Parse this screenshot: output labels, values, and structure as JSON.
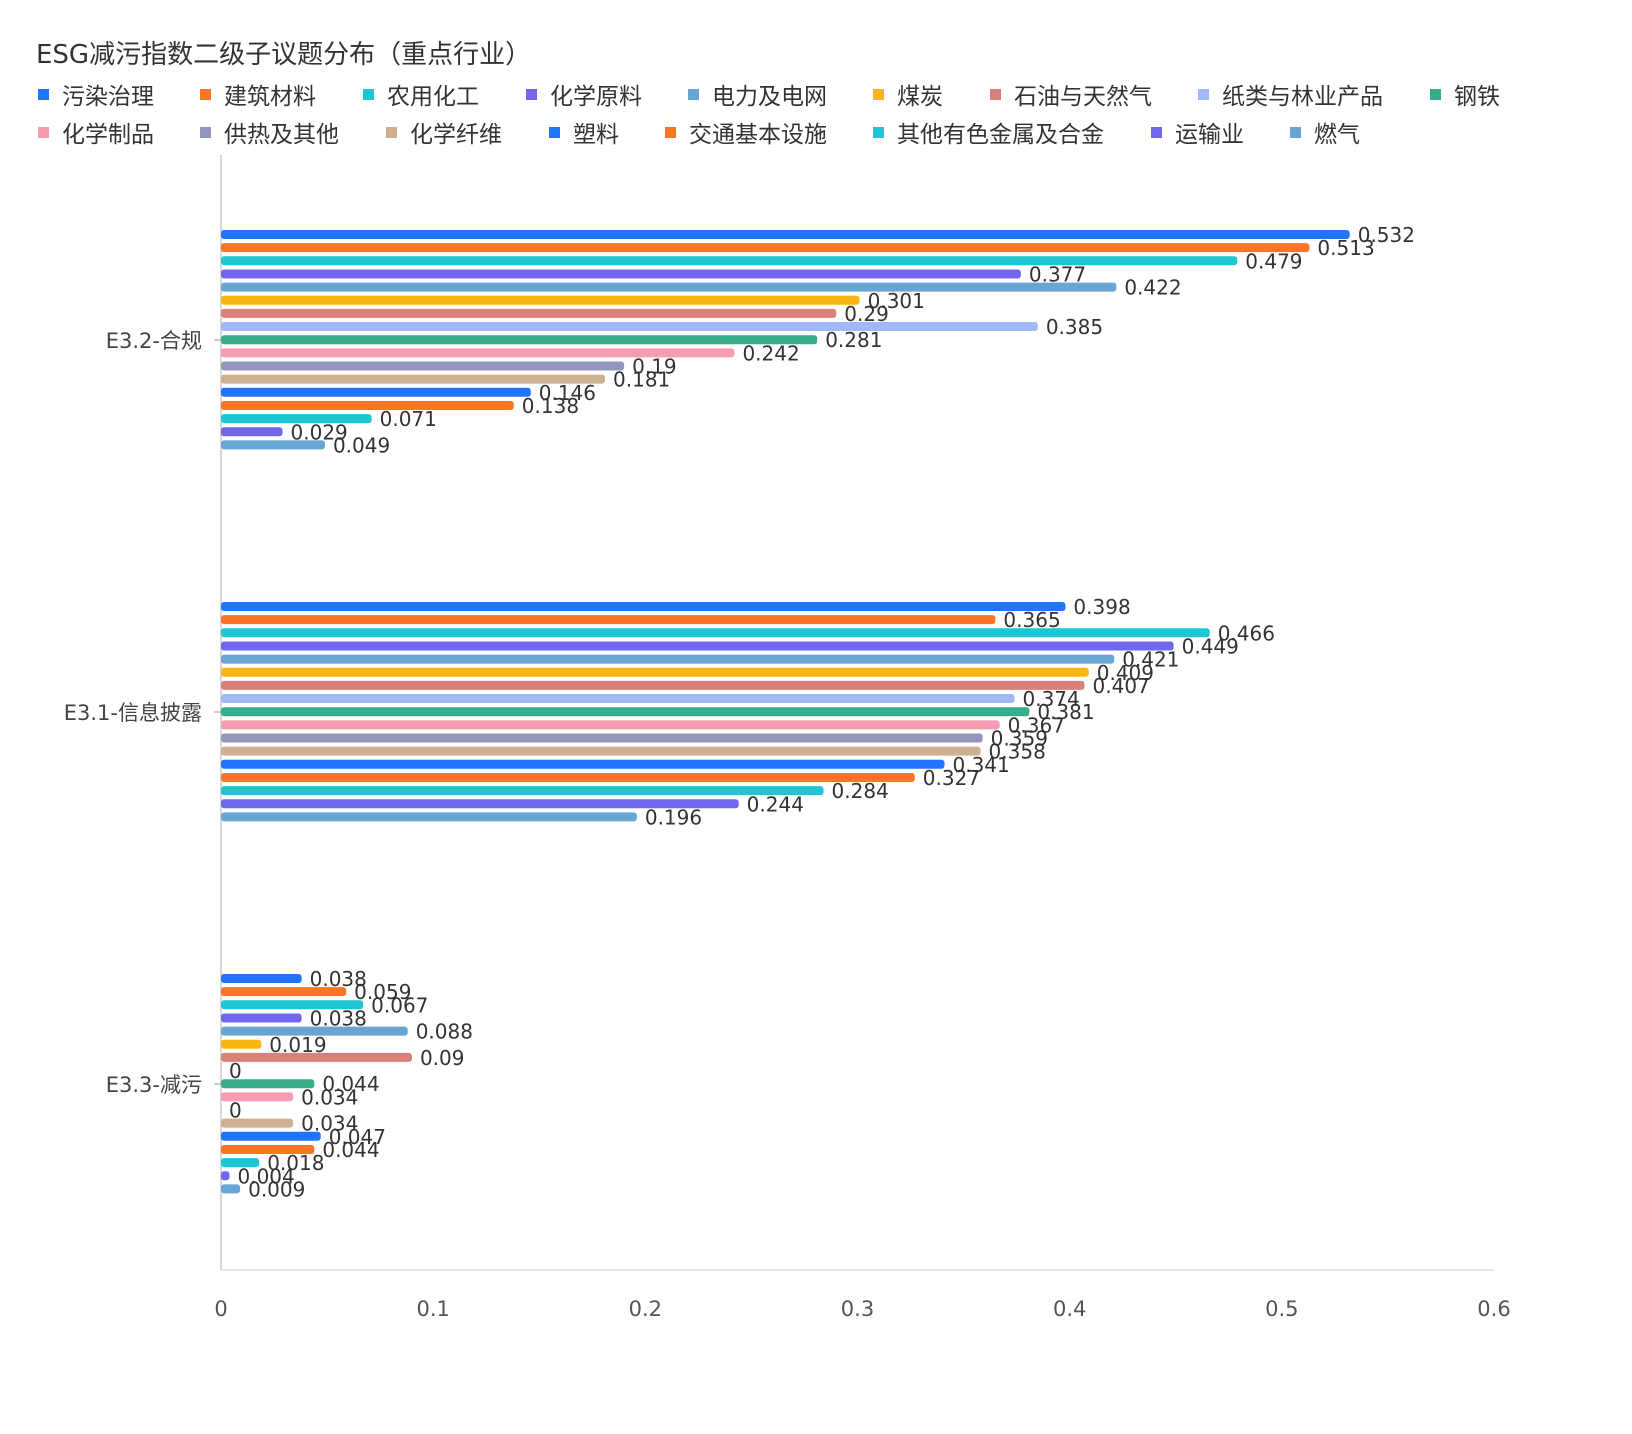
{
  "chart_data": {
    "type": "bar",
    "orientation": "horizontal",
    "title": "ESG减污指数二级子议题分布（重点行业）",
    "categories": [
      "E3.2-合规",
      "E3.1-信息披露",
      "E3.3-减污"
    ],
    "xlim": [
      0,
      0.6
    ],
    "xticks": [
      "0",
      "0.1",
      "0.2",
      "0.3",
      "0.4",
      "0.5",
      "0.6"
    ],
    "grid": false,
    "legend_position": "top",
    "series": [
      {
        "name": "污染治理",
        "color": "#1f75fe",
        "values": [
          0.532,
          0.398,
          0.038
        ]
      },
      {
        "name": "建筑材料",
        "color": "#fc7425",
        "values": [
          0.513,
          0.365,
          0.059
        ]
      },
      {
        "name": "农用化工",
        "color": "#1cc6d3",
        "values": [
          0.479,
          0.466,
          0.067
        ]
      },
      {
        "name": "化学原料",
        "color": "#7167ec",
        "values": [
          0.377,
          0.449,
          0.038
        ]
      },
      {
        "name": "电力及电网",
        "color": "#67a5d2",
        "values": [
          0.422,
          0.421,
          0.088
        ]
      },
      {
        "name": "煤炭",
        "color": "#fbb517",
        "values": [
          0.301,
          0.409,
          0.019
        ]
      },
      {
        "name": "石油与天然气",
        "color": "#d9807a",
        "values": [
          0.29,
          0.407,
          0.09
        ]
      },
      {
        "name": "纸类与林业产品",
        "color": "#9fb9f8",
        "values": [
          0.385,
          0.374,
          0
        ]
      },
      {
        "name": "钢铁",
        "color": "#38ad8c",
        "values": [
          0.281,
          0.381,
          0.044
        ]
      },
      {
        "name": "化学制品",
        "color": "#f59cb3",
        "values": [
          0.242,
          0.367,
          0.034
        ]
      },
      {
        "name": "供热及其他",
        "color": "#9296bd",
        "values": [
          0.19,
          0.359,
          0
        ]
      },
      {
        "name": "化学纤维",
        "color": "#ccb091",
        "values": [
          0.181,
          0.358,
          0.034
        ]
      },
      {
        "name": "塑料",
        "color": "#1f75fe",
        "values": [
          0.146,
          0.341,
          0.047
        ]
      },
      {
        "name": "交通基本设施",
        "color": "#fc7425",
        "values": [
          0.138,
          0.327,
          0.044
        ]
      },
      {
        "name": "其他有色金属及合金",
        "color": "#1cc6d3",
        "values": [
          0.071,
          0.284,
          0.018
        ]
      },
      {
        "name": "运输业",
        "color": "#7167ec",
        "values": [
          0.029,
          0.244,
          0.004
        ]
      },
      {
        "name": "燃气",
        "color": "#67a5d2",
        "values": [
          0.049,
          0.196,
          0.009
        ]
      }
    ]
  }
}
